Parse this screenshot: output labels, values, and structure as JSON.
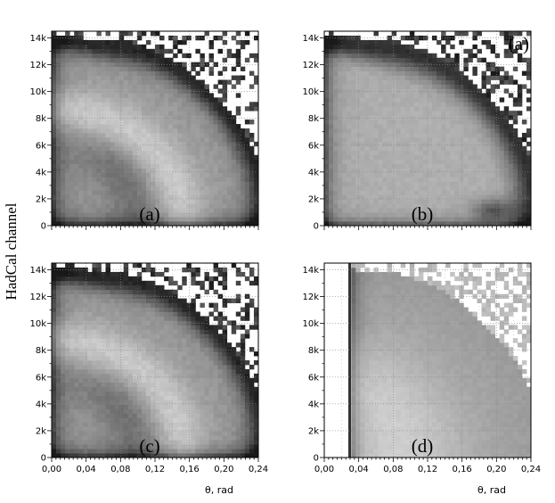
{
  "figure": {
    "ylabel": "HadCal channel",
    "xlabel": "θ, rad"
  },
  "chart_data": [
    {
      "type": "heatmap",
      "panel_label": "(a)",
      "xlim": [
        0,
        0.24
      ],
      "ylim": [
        0,
        14500
      ],
      "xticks": [
        "0,00",
        "0,04",
        "0,08",
        "0,12",
        "0,16",
        "0,20",
        "0,24"
      ],
      "yticks": [
        "0",
        "2k",
        "4k",
        "6k",
        "8k",
        "10k",
        "12k",
        "14k"
      ],
      "ytick_values": [
        0,
        2000,
        4000,
        6000,
        8000,
        10000,
        12000,
        14000
      ],
      "xtick_values": [
        0,
        0.04,
        0.08,
        0.12,
        0.16,
        0.2,
        0.24
      ],
      "grid": true,
      "pattern": "ring"
    },
    {
      "type": "heatmap",
      "panel_label": "(b)",
      "corner_label": "(a)",
      "xlim": [
        0,
        0.24
      ],
      "ylim": [
        0,
        14500
      ],
      "xticks": [
        "0,00",
        "0,04",
        "0,08",
        "0,12",
        "0,16",
        "0,20",
        "0,24"
      ],
      "yticks": [
        "0",
        "2k",
        "4k",
        "6k",
        "8k",
        "10k",
        "12k",
        "14k"
      ],
      "ytick_values": [
        0,
        2000,
        4000,
        6000,
        8000,
        10000,
        12000,
        14000
      ],
      "xtick_values": [
        0,
        0.04,
        0.08,
        0.12,
        0.16,
        0.2,
        0.24
      ],
      "grid": true,
      "pattern": "lowblob"
    },
    {
      "type": "heatmap",
      "panel_label": "(c)",
      "xlim": [
        0,
        0.24
      ],
      "ylim": [
        0,
        14500
      ],
      "xticks": [
        "0,00",
        "0,04",
        "0,08",
        "0,12",
        "0,16",
        "0,20",
        "0,24"
      ],
      "yticks": [
        "0",
        "2k",
        "4k",
        "6k",
        "8k",
        "10k",
        "12k",
        "14k"
      ],
      "ytick_values": [
        0,
        2000,
        4000,
        6000,
        8000,
        10000,
        12000,
        14000
      ],
      "xtick_values": [
        0,
        0.04,
        0.08,
        0.12,
        0.16,
        0.2,
        0.24
      ],
      "grid": true,
      "pattern": "ring"
    },
    {
      "type": "heatmap",
      "panel_label": "(d)",
      "xlim": [
        0,
        0.24
      ],
      "ylim": [
        0,
        14500
      ],
      "xticks": [
        "0,00",
        "0,04",
        "0,08",
        "0,12",
        "0,16",
        "0,20",
        "0,24"
      ],
      "yticks": [
        "0",
        "2k",
        "4k",
        "6k",
        "8k",
        "10k",
        "12k",
        "14k"
      ],
      "ytick_values": [
        0,
        2000,
        4000,
        6000,
        8000,
        10000,
        12000,
        14000
      ],
      "xtick_values": [
        0,
        0.04,
        0.08,
        0.12,
        0.16,
        0.2,
        0.24
      ],
      "grid": true,
      "pattern": "ratio",
      "cut_x": 0.03
    }
  ]
}
